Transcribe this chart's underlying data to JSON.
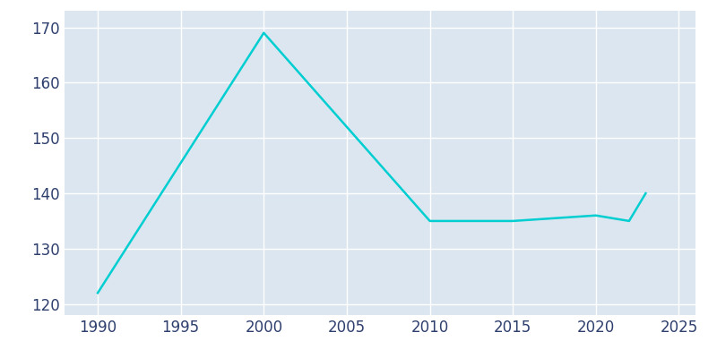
{
  "years": [
    1990,
    2000,
    2010,
    2015,
    2020,
    2022,
    2023
  ],
  "population": [
    122,
    169,
    135,
    135,
    136,
    135,
    140
  ],
  "line_color": "#00CED1",
  "plot_bg_color": "#dce6f0",
  "fig_bg_color": "#ffffff",
  "grid_color": "#ffffff",
  "tick_color": "#2e3f6e",
  "xlim": [
    1988,
    2026
  ],
  "ylim": [
    118,
    173
  ],
  "xticks": [
    1990,
    1995,
    2000,
    2005,
    2010,
    2015,
    2020,
    2025
  ],
  "yticks": [
    120,
    130,
    140,
    150,
    160,
    170
  ],
  "linewidth": 1.8,
  "tick_labelsize": 12
}
